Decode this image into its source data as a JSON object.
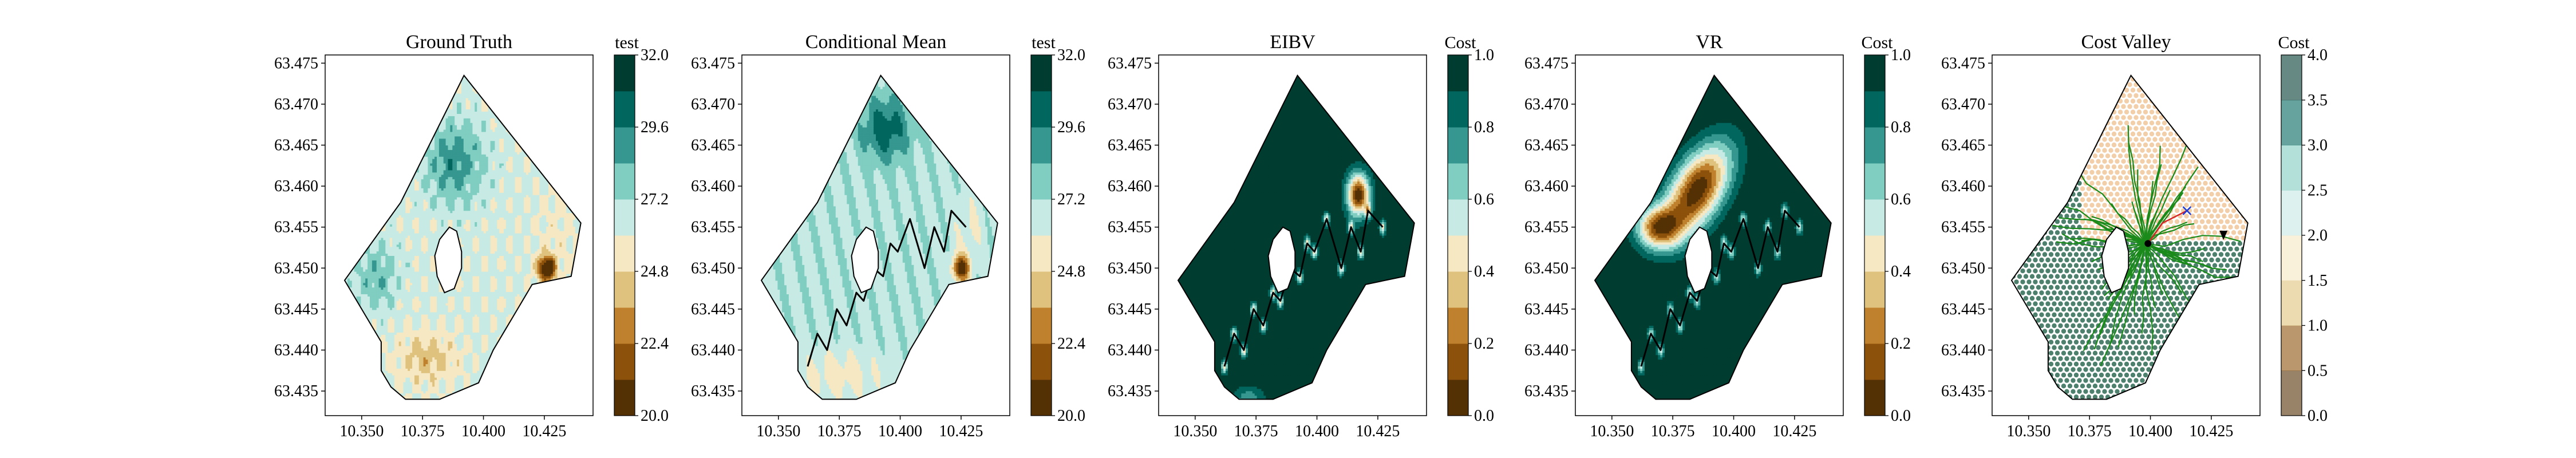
{
  "figure": {
    "description_free": true
  },
  "colors": {
    "brbg": [
      "#543005",
      "#8c510a",
      "#bf812d",
      "#dfc27d",
      "#f6e8c3",
      "#f5f5f5",
      "#c7eae5",
      "#80cdc1",
      "#35978f",
      "#01665e",
      "#003c30"
    ],
    "boundary": "#000000",
    "path": "#000000",
    "green_tree": "#1a8a1a",
    "hex_dots": "#2e6b55",
    "orange_dots": "#e8a862",
    "red_line": "#d62728",
    "blue_marker": "#1f3bd6"
  },
  "chart_data": [
    {
      "type": "heatmap",
      "title": "Ground Truth",
      "colorbar_label": "test",
      "colorbar_ticks": [
        "20.0",
        "22.4",
        "24.8",
        "27.2",
        "29.6",
        "32.0"
      ],
      "clim": [
        20.0,
        32.0
      ],
      "x_ticks": [
        "10.350",
        "10.375",
        "10.400",
        "10.425"
      ],
      "y_ticks": [
        "63.475",
        "63.470",
        "63.465",
        "63.460",
        "63.455",
        "63.450",
        "63.445",
        "63.440",
        "63.435"
      ],
      "xlim": [
        10.335,
        10.445
      ],
      "ylim": [
        63.432,
        63.476
      ]
    },
    {
      "type": "heatmap",
      "title": "Conditional Mean",
      "colorbar_label": "test",
      "colorbar_ticks": [
        "20.0",
        "22.4",
        "24.8",
        "27.2",
        "29.6",
        "32.0"
      ],
      "clim": [
        20.0,
        32.0
      ],
      "x_ticks": [
        "10.350",
        "10.375",
        "10.400",
        "10.425"
      ],
      "y_ticks": [
        "63.475",
        "63.470",
        "63.465",
        "63.460",
        "63.455",
        "63.450",
        "63.445",
        "63.440",
        "63.435"
      ],
      "xlim": [
        10.335,
        10.445
      ],
      "ylim": [
        63.432,
        63.476
      ],
      "path": [
        [
          10.362,
          63.438
        ],
        [
          10.366,
          63.442
        ],
        [
          10.37,
          63.44
        ],
        [
          10.374,
          63.445
        ],
        [
          10.378,
          63.443
        ],
        [
          10.382,
          63.447
        ],
        [
          10.385,
          63.446
        ],
        [
          10.389,
          63.45
        ],
        [
          10.393,
          63.449
        ],
        [
          10.396,
          63.453
        ],
        [
          10.399,
          63.452
        ],
        [
          10.404,
          63.456
        ],
        [
          10.41,
          63.45
        ],
        [
          10.414,
          63.455
        ],
        [
          10.418,
          63.452
        ],
        [
          10.421,
          63.457
        ],
        [
          10.427,
          63.455
        ]
      ]
    },
    {
      "type": "heatmap",
      "title": "EIBV",
      "colorbar_label": "Cost",
      "colorbar_ticks": [
        "0.0",
        "0.2",
        "0.4",
        "0.6",
        "0.8",
        "1.0"
      ],
      "clim": [
        0.0,
        1.0
      ],
      "x_ticks": [
        "10.350",
        "10.375",
        "10.400",
        "10.425"
      ],
      "y_ticks": [
        "63.475",
        "63.470",
        "63.465",
        "63.460",
        "63.455",
        "63.450",
        "63.445",
        "63.440",
        "63.435"
      ],
      "xlim": [
        10.335,
        10.445
      ],
      "ylim": [
        63.432,
        63.476
      ],
      "path": [
        [
          10.362,
          63.438
        ],
        [
          10.366,
          63.442
        ],
        [
          10.37,
          63.44
        ],
        [
          10.374,
          63.445
        ],
        [
          10.378,
          63.443
        ],
        [
          10.382,
          63.447
        ],
        [
          10.385,
          63.446
        ],
        [
          10.389,
          63.45
        ],
        [
          10.393,
          63.449
        ],
        [
          10.396,
          63.453
        ],
        [
          10.399,
          63.452
        ],
        [
          10.404,
          63.456
        ],
        [
          10.41,
          63.45
        ],
        [
          10.414,
          63.455
        ],
        [
          10.418,
          63.452
        ],
        [
          10.421,
          63.457
        ],
        [
          10.427,
          63.455
        ]
      ]
    },
    {
      "type": "heatmap",
      "title": "VR",
      "colorbar_label": "Cost",
      "colorbar_ticks": [
        "0.0",
        "0.2",
        "0.4",
        "0.6",
        "0.8",
        "1.0"
      ],
      "clim": [
        0.0,
        1.0
      ],
      "x_ticks": [
        "10.350",
        "10.375",
        "10.400",
        "10.425"
      ],
      "y_ticks": [
        "63.475",
        "63.470",
        "63.465",
        "63.460",
        "63.455",
        "63.450",
        "63.445",
        "63.440",
        "63.435"
      ],
      "xlim": [
        10.335,
        10.445
      ],
      "ylim": [
        63.432,
        63.476
      ],
      "path": [
        [
          10.362,
          63.438
        ],
        [
          10.366,
          63.442
        ],
        [
          10.37,
          63.44
        ],
        [
          10.374,
          63.445
        ],
        [
          10.378,
          63.443
        ],
        [
          10.382,
          63.447
        ],
        [
          10.385,
          63.446
        ],
        [
          10.389,
          63.45
        ],
        [
          10.393,
          63.449
        ],
        [
          10.396,
          63.453
        ],
        [
          10.399,
          63.452
        ],
        [
          10.404,
          63.456
        ],
        [
          10.41,
          63.45
        ],
        [
          10.414,
          63.455
        ],
        [
          10.418,
          63.452
        ],
        [
          10.421,
          63.457
        ],
        [
          10.427,
          63.455
        ]
      ]
    },
    {
      "type": "heatmap",
      "title": "Cost Valley",
      "colorbar_label": "Cost",
      "colorbar_ticks": [
        "0.0",
        "0.5",
        "1.0",
        "1.5",
        "2.0",
        "2.5",
        "3.0",
        "3.5",
        "4.0"
      ],
      "clim": [
        0.0,
        4.0
      ],
      "x_ticks": [
        "10.350",
        "10.375",
        "10.400",
        "10.425"
      ],
      "y_ticks": [
        "63.475",
        "63.470",
        "63.465",
        "63.460",
        "63.455",
        "63.450",
        "63.445",
        "63.440",
        "63.435"
      ],
      "xlim": [
        10.335,
        10.445
      ],
      "ylim": [
        63.432,
        63.476
      ],
      "tree_root": [
        10.398,
        63.453
      ],
      "current_location": [
        10.399,
        63.453
      ],
      "next_location": [
        10.43,
        63.454
      ],
      "target": [
        10.415,
        63.457
      ]
    }
  ],
  "boundary_polygon": [
    [
      10.392,
      63.4735
    ],
    [
      10.44,
      63.4555
    ],
    [
      10.436,
      63.449
    ],
    [
      10.42,
      63.448
    ],
    [
      10.412,
      63.444
    ],
    [
      10.404,
      63.44
    ],
    [
      10.398,
      63.436
    ],
    [
      10.382,
      63.434
    ],
    [
      10.368,
      63.434
    ],
    [
      10.362,
      63.4355
    ],
    [
      10.358,
      63.4375
    ],
    [
      10.358,
      63.441
    ],
    [
      10.35,
      63.445
    ],
    [
      10.343,
      63.4485
    ],
    [
      10.366,
      63.458
    ],
    [
      10.392,
      63.4735
    ]
  ],
  "island_polygon": [
    [
      10.386,
      63.455
    ],
    [
      10.389,
      63.4545
    ],
    [
      10.391,
      63.452
    ],
    [
      10.391,
      63.45
    ],
    [
      10.388,
      63.4475
    ],
    [
      10.384,
      63.447
    ],
    [
      10.381,
      63.449
    ],
    [
      10.38,
      63.4515
    ],
    [
      10.382,
      63.4535
    ]
  ]
}
